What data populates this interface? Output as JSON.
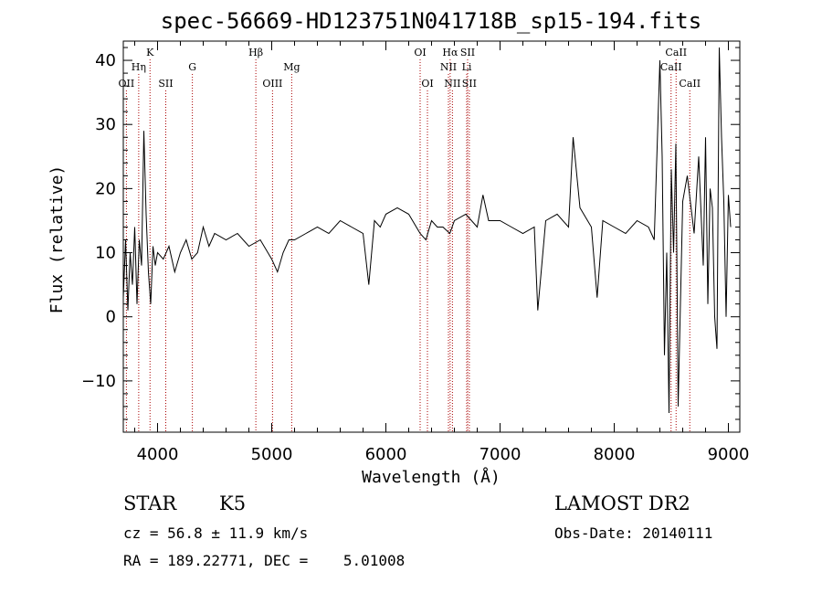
{
  "chart_data": {
    "type": "line",
    "title": "spec-56669-HD123751N041718B_sp15-194.fits",
    "xlabel": "Wavelength (Å)",
    "ylabel": "Flux (relative)",
    "xlim": [
      3700,
      9100
    ],
    "ylim": [
      -18,
      43
    ],
    "xticks": [
      4000,
      5000,
      6000,
      7000,
      8000,
      9000
    ],
    "yticks": [
      -10,
      0,
      10,
      20,
      30,
      40
    ],
    "grid": false,
    "line_color": "#000000",
    "marker_color": "#aa0000",
    "spectrum": {
      "x": [
        3700,
        3720,
        3740,
        3760,
        3780,
        3800,
        3820,
        3840,
        3860,
        3880,
        3900,
        3920,
        3940,
        3960,
        3980,
        4000,
        4050,
        4100,
        4150,
        4200,
        4250,
        4300,
        4350,
        4400,
        4450,
        4500,
        4600,
        4700,
        4800,
        4900,
        5000,
        5050,
        5100,
        5150,
        5200,
        5300,
        5400,
        5500,
        5600,
        5700,
        5800,
        5850,
        5900,
        5950,
        6000,
        6100,
        6200,
        6300,
        6350,
        6400,
        6450,
        6500,
        6560,
        6600,
        6700,
        6800,
        6850,
        6900,
        7000,
        7100,
        7200,
        7300,
        7330,
        7400,
        7500,
        7600,
        7640,
        7700,
        7800,
        7850,
        7900,
        8000,
        8100,
        8200,
        8300,
        8350,
        8400,
        8420,
        8440,
        8460,
        8480,
        8500,
        8520,
        8540,
        8560,
        8600,
        8640,
        8680,
        8700,
        8740,
        8780,
        8800,
        8820,
        8840,
        8860,
        8880,
        8900,
        8920,
        8940,
        8960,
        8980,
        9000,
        9020
      ],
      "y": [
        3,
        12,
        1,
        10,
        5,
        14,
        2,
        12,
        8,
        29,
        16,
        7,
        2,
        11,
        8,
        10,
        9,
        11,
        7,
        10,
        12,
        9,
        10,
        14,
        11,
        13,
        12,
        13,
        11,
        12,
        9,
        7,
        10,
        12,
        12,
        13,
        14,
        13,
        15,
        14,
        13,
        5,
        15,
        14,
        16,
        17,
        16,
        13,
        12,
        15,
        14,
        14,
        13,
        15,
        16,
        14,
        19,
        15,
        15,
        14,
        13,
        14,
        1,
        15,
        16,
        14,
        28,
        17,
        14,
        3,
        15,
        14,
        13,
        15,
        14,
        12,
        40,
        25,
        -6,
        10,
        -15,
        23,
        10,
        27,
        -14,
        18,
        22,
        16,
        13,
        25,
        8,
        28,
        2,
        20,
        17,
        0,
        -5,
        42,
        28,
        18,
        0,
        19,
        14
      ]
    },
    "annotations": [
      {
        "label": "OII",
        "wavelength": 3727,
        "row": 3
      },
      {
        "label": "Hη",
        "wavelength": 3835,
        "row": 2
      },
      {
        "label": "K",
        "wavelength": 3934,
        "row": 1
      },
      {
        "label": "SII",
        "wavelength": 4072,
        "row": 3
      },
      {
        "label": "G",
        "wavelength": 4305,
        "row": 2
      },
      {
        "label": "Hβ",
        "wavelength": 4861,
        "row": 1
      },
      {
        "label": "OIII",
        "wavelength": 5007,
        "row": 3
      },
      {
        "label": "Mg",
        "wavelength": 5175,
        "row": 2
      },
      {
        "label": "OI",
        "wavelength": 6300,
        "row": 1
      },
      {
        "label": "OI",
        "wavelength": 6364,
        "row": 3
      },
      {
        "label": "Hα",
        "wavelength": 6563,
        "row": 1
      },
      {
        "label": "NII",
        "wavelength": 6548,
        "row": 2
      },
      {
        "label": "NII",
        "wavelength": 6583,
        "row": 3
      },
      {
        "label": "SII",
        "wavelength": 6716,
        "row": 1
      },
      {
        "label": "Li",
        "wavelength": 6708,
        "row": 2
      },
      {
        "label": "SII",
        "wavelength": 6731,
        "row": 3
      },
      {
        "label": "CaII",
        "wavelength": 8542,
        "row": 1
      },
      {
        "label": "CaII",
        "wavelength": 8498,
        "row": 2
      },
      {
        "label": "CaII",
        "wavelength": 8662,
        "row": 3
      }
    ]
  },
  "info": {
    "object_class": "STAR",
    "subclass": "K5",
    "survey": "LAMOST DR2",
    "redshift": "cz = 56.8 ± 11.9 km/s",
    "obs_date": "Obs-Date: 20140111",
    "coords": "RA = 189.22771, DEC =    5.01008"
  }
}
